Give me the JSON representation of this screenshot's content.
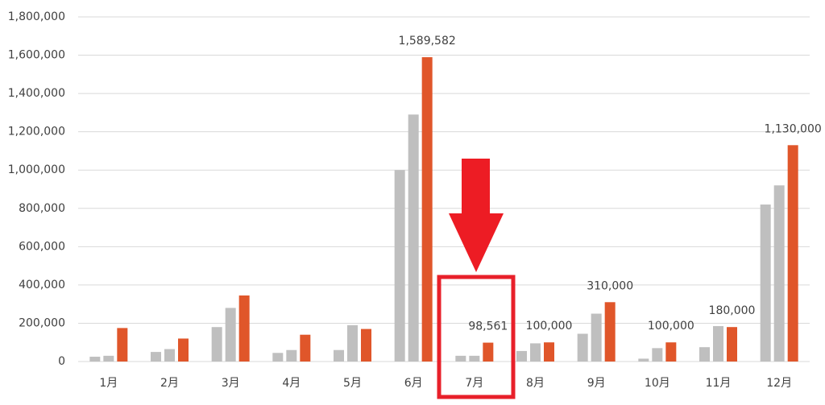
{
  "chart_data": {
    "type": "bar",
    "categories": [
      "1月",
      "2月",
      "3月",
      "4月",
      "5月",
      "6月",
      "7月",
      "8月",
      "9月",
      "10月",
      "11月",
      "12月"
    ],
    "series": [
      {
        "color": "#bfbfbf",
        "values": [
          25000,
          50000,
          180000,
          45000,
          60000,
          1000000,
          30000,
          55000,
          145000,
          15000,
          75000,
          820000
        ]
      },
      {
        "color": "#bfbfbf",
        "values": [
          30000,
          65000,
          280000,
          60000,
          190000,
          1290000,
          30000,
          95000,
          250000,
          70000,
          185000,
          920000
        ]
      },
      {
        "color": "#e0562a",
        "values": [
          175000,
          120000,
          345000,
          140000,
          170000,
          1589582,
          98561,
          100000,
          310000,
          100000,
          180000,
          1130000
        ],
        "value_labels": [
          null,
          null,
          null,
          null,
          null,
          "1,589,582",
          "98,561",
          "100,000",
          "310,000",
          "100,000",
          "180,000",
          "1,130,000"
        ]
      }
    ],
    "ylim": [
      0,
      1800000
    ],
    "yticks": [
      0,
      {
        "value": 200000,
        "label": "200,000"
      },
      {
        "value": 400000,
        "label": "400,000"
      },
      {
        "value": 600000,
        "label": "600,000"
      },
      {
        "value": 800000,
        "label": "800,000"
      },
      {
        "value": 1000000,
        "label": "1,000,000"
      },
      {
        "value": 1200000,
        "label": "1,200,000"
      },
      {
        "value": 1400000,
        "label": "1,400,000"
      },
      {
        "value": 1600000,
        "label": "1,600,000"
      },
      {
        "value": 1800000,
        "label": "1,800,000"
      }
    ],
    "grid": true
  }
}
